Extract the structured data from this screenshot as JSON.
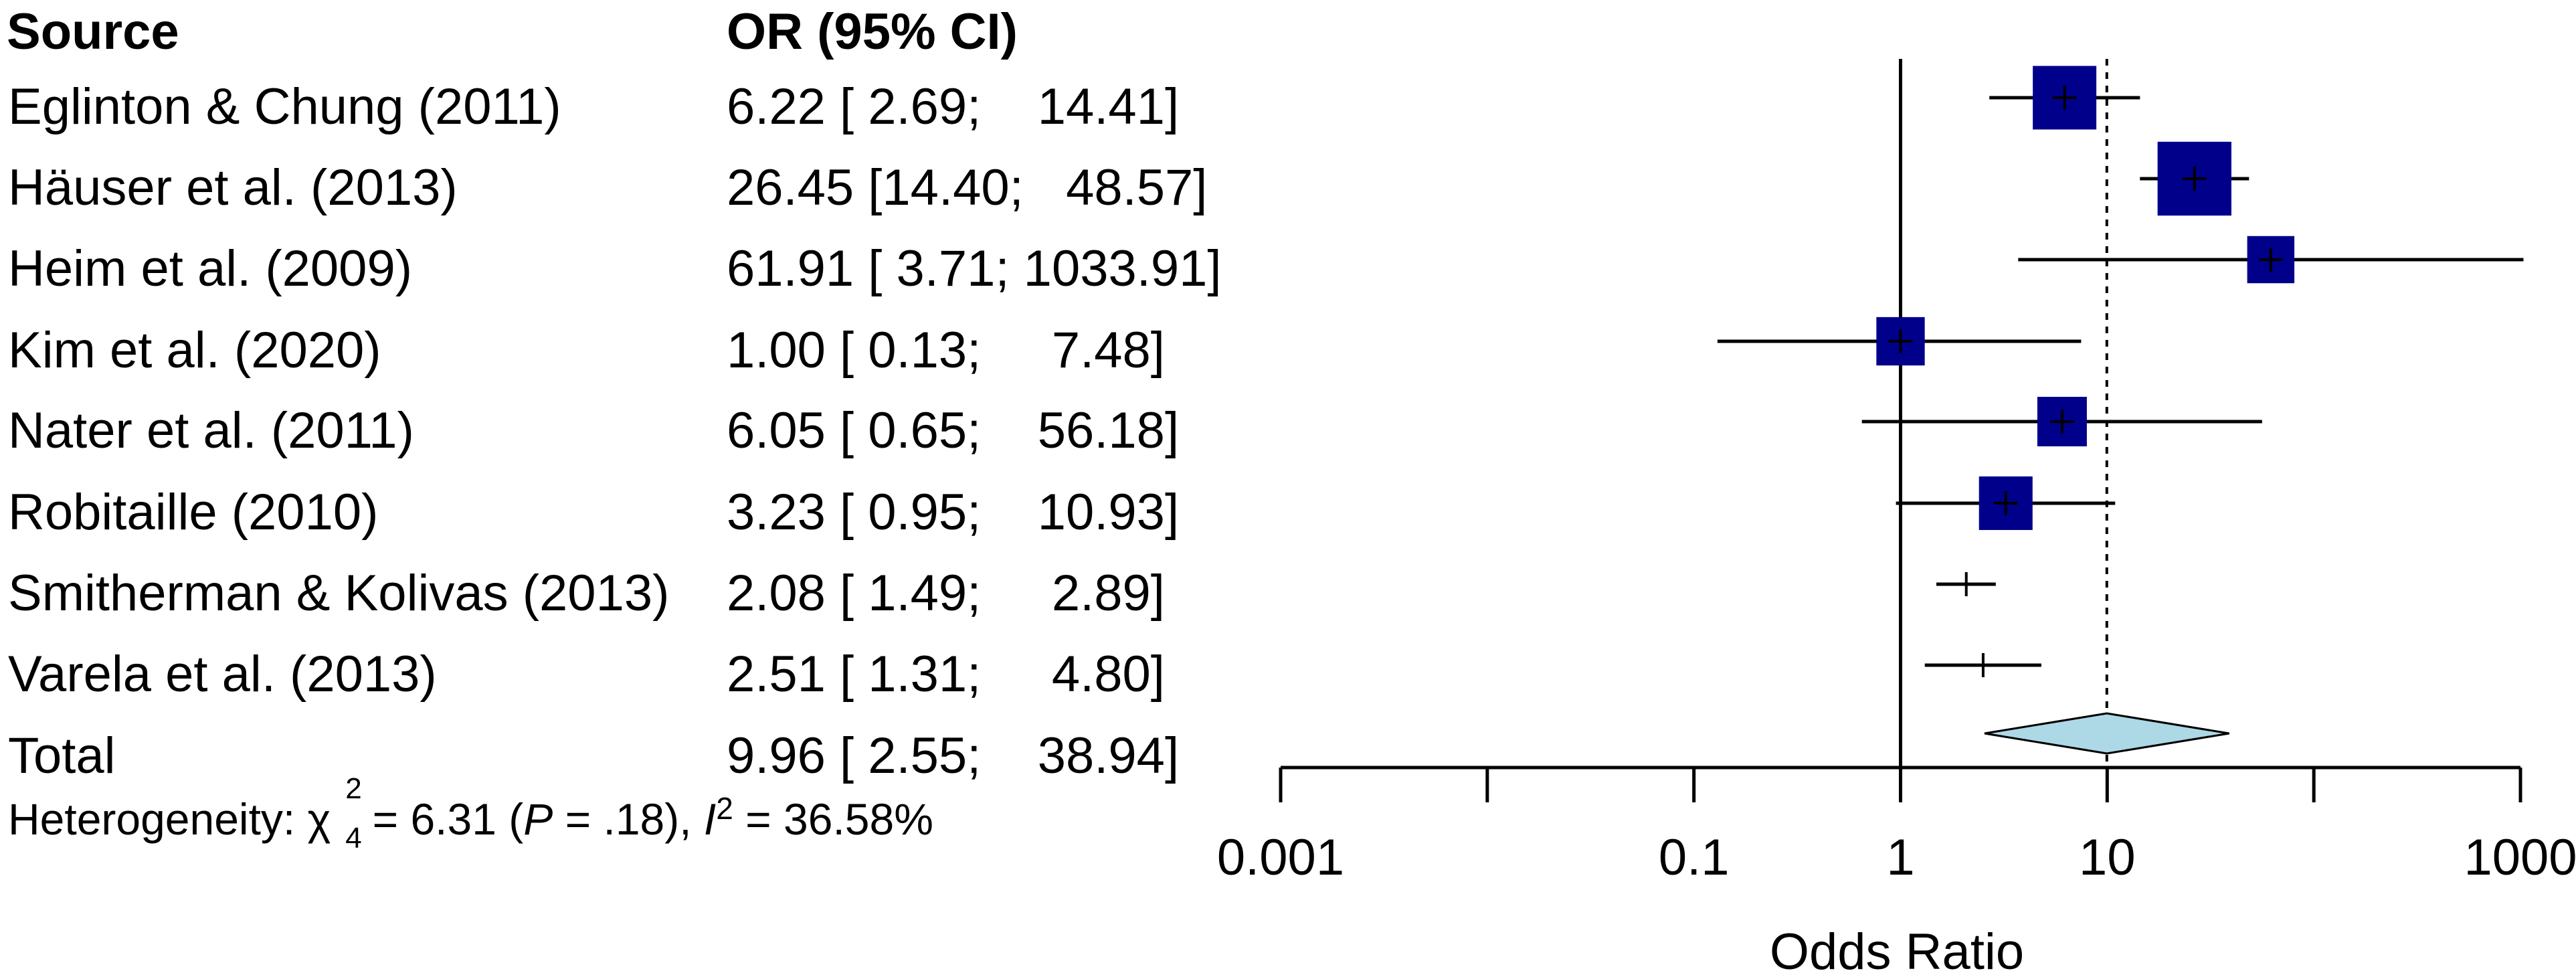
{
  "table": {
    "col_source": "Source",
    "col_or": "OR (95% CI)",
    "rows": [
      {
        "source": "Eglinton & Chung (2011)",
        "ci_text": "6.22 [ 2.69;    14.41]"
      },
      {
        "source": "Häuser et al. (2013)",
        "ci_text": "26.45 [14.40;   48.57]"
      },
      {
        "source": "Heim et al. (2009)",
        "ci_text": "61.91 [ 3.71; 1033.91]"
      },
      {
        "source": "Kim et al. (2020)",
        "ci_text": "1.00 [ 0.13;     7.48]"
      },
      {
        "source": "Nater et al. (2011)",
        "ci_text": "6.05 [ 0.65;    56.18]"
      },
      {
        "source": "Robitaille (2010)",
        "ci_text": "3.23 [ 0.95;    10.93]"
      },
      {
        "source": "Smitherman & Kolivas (2013)",
        "ci_text": "2.08 [ 1.49;     2.89]"
      },
      {
        "source": "Varela et al. (2013)",
        "ci_text": "2.51 [ 1.31;     4.80]"
      },
      {
        "source": "Total",
        "ci_text": "9.96 [ 2.55;    38.94]"
      }
    ],
    "heterogeneity": {
      "prefix": "Heterogeneity: χ",
      "chi_sup": "2",
      "chi_sub": "4",
      "stat": " = 6.31 (",
      "p_label": "P",
      "p_value": " = .18), ",
      "i_label": "I",
      "i_sup": "2",
      "i_value": " = 36.58%"
    }
  },
  "chart_data": {
    "type": "forest",
    "xlabel": "Odds Ratio",
    "x_scale": "log",
    "xlim": [
      0.001,
      1000
    ],
    "ticks": [
      {
        "value": 0.001,
        "label": "0.001"
      },
      {
        "value": 0.1,
        "label": "0.1"
      },
      {
        "value": 1,
        "label": "1"
      },
      {
        "value": 10,
        "label": "10"
      },
      {
        "value": 1000,
        "label": "1000"
      }
    ],
    "minor_ticks": [
      0.01,
      100
    ],
    "null_line": 1,
    "pooled_line": 9.96,
    "studies": [
      {
        "name": "Eglinton & Chung (2011)",
        "or": 6.22,
        "lo": 2.69,
        "hi": 14.41,
        "weight": 0.26
      },
      {
        "name": "Häuser et al. (2013)",
        "or": 26.45,
        "lo": 14.4,
        "hi": 48.57,
        "weight": 0.44
      },
      {
        "name": "Heim et al. (2009)",
        "or": 61.91,
        "lo": 3.71,
        "hi": 1033.91,
        "weight": 0.07
      },
      {
        "name": "Kim et al. (2020)",
        "or": 1.0,
        "lo": 0.13,
        "hi": 7.48,
        "weight": 0.08
      },
      {
        "name": "Nater et al. (2011)",
        "or": 6.05,
        "lo": 0.65,
        "hi": 56.18,
        "weight": 0.09
      },
      {
        "name": "Robitaille (2010)",
        "or": 3.23,
        "lo": 0.95,
        "hi": 10.93,
        "weight": 0.13
      },
      {
        "name": "Smitherman & Kolivas (2013)",
        "or": 2.08,
        "lo": 1.49,
        "hi": 2.89,
        "weight": 0.0
      },
      {
        "name": "Varela et al. (2013)",
        "or": 2.51,
        "lo": 1.31,
        "hi": 4.8,
        "weight": 0.0
      }
    ],
    "total": {
      "or": 9.96,
      "lo": 2.55,
      "hi": 38.94
    },
    "colors": {
      "box": "#00008B",
      "diamond_fill": "#ADD8E6",
      "line": "#000000"
    }
  }
}
